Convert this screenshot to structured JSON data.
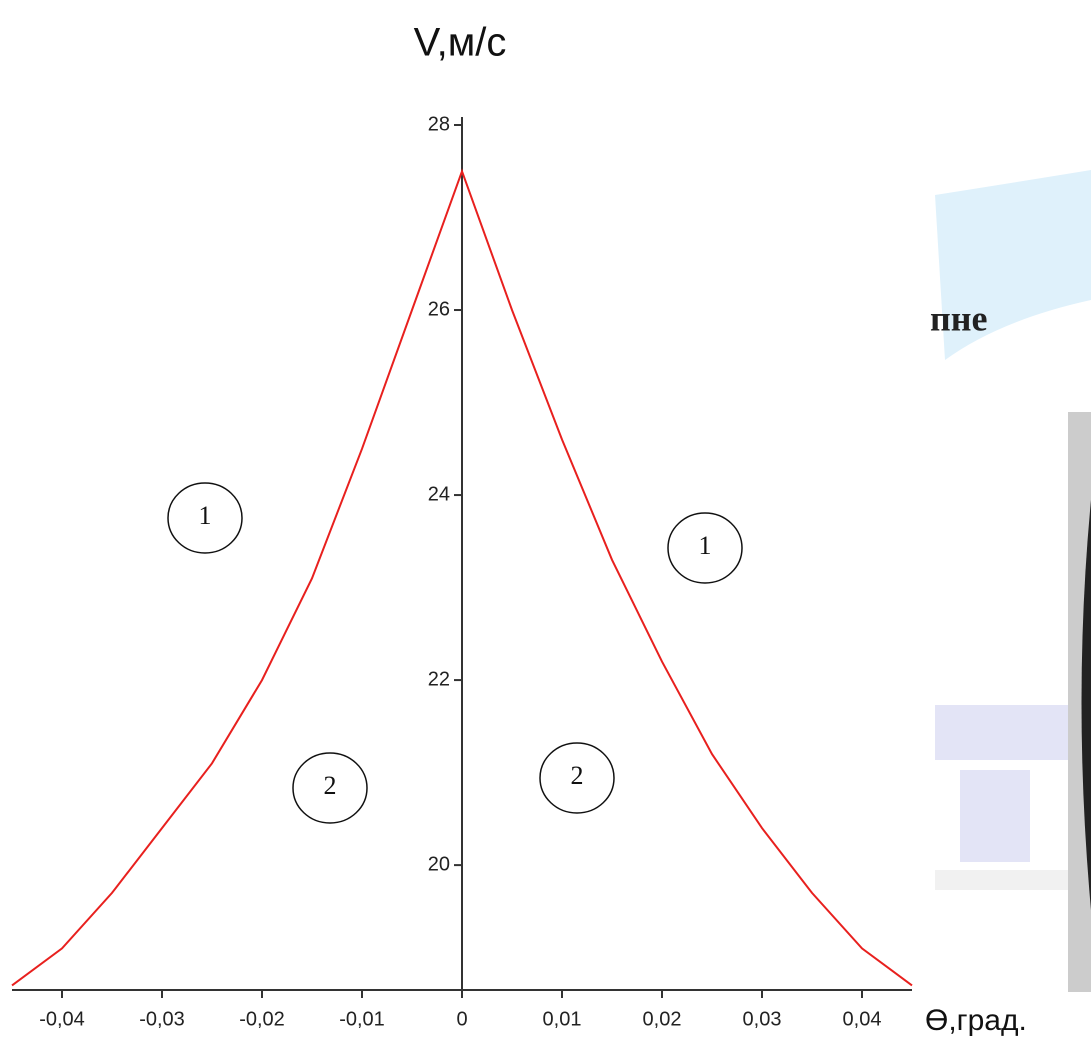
{
  "background_text": "пне",
  "chart_data": {
    "type": "line",
    "y_label": "V,м/с",
    "x_label": "Ө,град.",
    "x": [
      -0.045,
      -0.04,
      -0.035,
      -0.03,
      -0.025,
      -0.02,
      -0.015,
      -0.01,
      -0.005,
      0,
      0.005,
      0.01,
      0.015,
      0.02,
      0.025,
      0.03,
      0.035,
      0.04,
      0.045
    ],
    "series": [
      {
        "color": "#e8201e",
        "values": [
          18.7,
          19.1,
          19.7,
          20.4,
          21.1,
          22.0,
          23.1,
          24.5,
          26.0,
          27.5,
          26.0,
          24.6,
          23.3,
          22.2,
          21.2,
          20.4,
          19.7,
          19.1,
          18.7
        ]
      }
    ],
    "xlim": [
      -0.045,
      0.045
    ],
    "ylim": [
      18.65,
      28
    ],
    "xticks": [
      {
        "value": -0.04,
        "label": "-0,04"
      },
      {
        "value": -0.03,
        "label": "-0,03"
      },
      {
        "value": -0.02,
        "label": "-0,02"
      },
      {
        "value": -0.01,
        "label": "-0,01"
      },
      0,
      {
        "value": 0.01,
        "label": "0,01"
      },
      {
        "value": 0.02,
        "label": "0,02"
      },
      {
        "value": 0.03,
        "label": "0,03"
      },
      {
        "value": 0.04,
        "label": "0,04"
      }
    ],
    "yticks": [
      20,
      22,
      24,
      26,
      28
    ],
    "annotations": [
      "1",
      "1",
      "2",
      "2"
    ]
  }
}
